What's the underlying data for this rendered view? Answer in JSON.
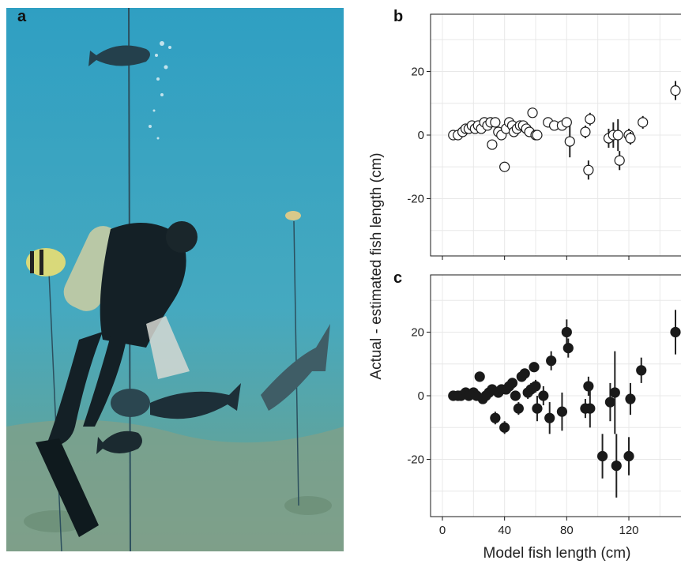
{
  "panels": {
    "a": "a",
    "b": "b",
    "c": "c"
  },
  "colors": {
    "water_top": "#3aa6c6",
    "water_bottom": "#4f9a8c",
    "seabed": "#7f9f86",
    "open_marker": "#ffffff",
    "filled_marker": "#1a1a1a"
  },
  "chart_data": [
    {
      "panel": "b",
      "type": "scatter",
      "marker": "open-circle",
      "xlabel": "Model fish length (cm)",
      "ylabel": "Actual - estimated fish length (cm)",
      "xlim": [
        0,
        150
      ],
      "ylim": [
        -38,
        38
      ],
      "x_ticks": [
        0,
        40,
        80,
        120
      ],
      "y_ticks": [
        -20,
        0,
        20
      ],
      "grid": true,
      "points": [
        {
          "x": 7,
          "y": 0,
          "err": 0
        },
        {
          "x": 10,
          "y": 0,
          "err": 0
        },
        {
          "x": 13,
          "y": 1,
          "err": 0
        },
        {
          "x": 15,
          "y": 2,
          "err": 0
        },
        {
          "x": 17,
          "y": 2,
          "err": 0
        },
        {
          "x": 19,
          "y": 3,
          "err": 0
        },
        {
          "x": 21,
          "y": 2,
          "err": 0
        },
        {
          "x": 23,
          "y": 3,
          "err": 0
        },
        {
          "x": 25,
          "y": 2,
          "err": 0
        },
        {
          "x": 27,
          "y": 4,
          "err": 0
        },
        {
          "x": 29,
          "y": 3,
          "err": 0
        },
        {
          "x": 31,
          "y": 4,
          "err": 0
        },
        {
          "x": 32,
          "y": -3,
          "err": 0
        },
        {
          "x": 34,
          "y": 4,
          "err": 0
        },
        {
          "x": 36,
          "y": 1,
          "err": 0
        },
        {
          "x": 38,
          "y": 0,
          "err": 0
        },
        {
          "x": 40,
          "y": -10,
          "err": 0
        },
        {
          "x": 41,
          "y": 2,
          "err": 0
        },
        {
          "x": 43,
          "y": 4,
          "err": 0
        },
        {
          "x": 45,
          "y": 3,
          "err": 0
        },
        {
          "x": 46,
          "y": 1,
          "err": 0
        },
        {
          "x": 48,
          "y": 2,
          "err": 0
        },
        {
          "x": 50,
          "y": 3,
          "err": 0
        },
        {
          "x": 52,
          "y": 3,
          "err": 0
        },
        {
          "x": 54,
          "y": 2,
          "err": 0
        },
        {
          "x": 56,
          "y": 1,
          "err": 0
        },
        {
          "x": 58,
          "y": 7,
          "err": 1
        },
        {
          "x": 60,
          "y": 0,
          "err": 0
        },
        {
          "x": 61,
          "y": 0,
          "err": 0
        },
        {
          "x": 68,
          "y": 4,
          "err": 1
        },
        {
          "x": 72,
          "y": 3,
          "err": 1
        },
        {
          "x": 77,
          "y": 3,
          "err": 1
        },
        {
          "x": 80,
          "y": 4,
          "err": 1
        },
        {
          "x": 82,
          "y": -2,
          "err": 5
        },
        {
          "x": 92,
          "y": 1,
          "err": 2
        },
        {
          "x": 95,
          "y": 5,
          "err": 2
        },
        {
          "x": 94,
          "y": -11,
          "err": 3
        },
        {
          "x": 107,
          "y": -1,
          "err": 3
        },
        {
          "x": 110,
          "y": 0,
          "err": 4
        },
        {
          "x": 113,
          "y": 0,
          "err": 5
        },
        {
          "x": 114,
          "y": -8,
          "err": 3
        },
        {
          "x": 120,
          "y": 0,
          "err": 2
        },
        {
          "x": 121,
          "y": -1,
          "err": 2
        },
        {
          "x": 129,
          "y": 4,
          "err": 2
        },
        {
          "x": 150,
          "y": 14,
          "err": 3
        }
      ]
    },
    {
      "panel": "c",
      "type": "scatter",
      "marker": "filled-circle",
      "xlabel": "Model fish length (cm)",
      "ylabel": "Actual - estimated fish length (cm)",
      "xlim": [
        0,
        150
      ],
      "ylim": [
        -38,
        38
      ],
      "x_ticks": [
        0,
        40,
        80,
        120
      ],
      "y_ticks": [
        -20,
        0,
        20
      ],
      "grid": true,
      "points": [
        {
          "x": 7,
          "y": 0,
          "err": 0
        },
        {
          "x": 10,
          "y": 0,
          "err": 0
        },
        {
          "x": 12,
          "y": 0,
          "err": 0
        },
        {
          "x": 15,
          "y": 1,
          "err": 0
        },
        {
          "x": 17,
          "y": 0,
          "err": 0
        },
        {
          "x": 20,
          "y": 1,
          "err": 0
        },
        {
          "x": 22,
          "y": 0,
          "err": 0
        },
        {
          "x": 24,
          "y": 6,
          "err": 1
        },
        {
          "x": 26,
          "y": -1,
          "err": 0
        },
        {
          "x": 28,
          "y": 0,
          "err": 0
        },
        {
          "x": 30,
          "y": 1,
          "err": 0
        },
        {
          "x": 32,
          "y": 2,
          "err": 0
        },
        {
          "x": 34,
          "y": -7,
          "err": 2
        },
        {
          "x": 36,
          "y": 1,
          "err": 1
        },
        {
          "x": 38,
          "y": 2,
          "err": 1
        },
        {
          "x": 40,
          "y": -10,
          "err": 2
        },
        {
          "x": 41,
          "y": 2,
          "err": 1
        },
        {
          "x": 43,
          "y": 3,
          "err": 1
        },
        {
          "x": 45,
          "y": 4,
          "err": 1
        },
        {
          "x": 47,
          "y": 0,
          "err": 1
        },
        {
          "x": 49,
          "y": -4,
          "err": 2
        },
        {
          "x": 51,
          "y": 6,
          "err": 1
        },
        {
          "x": 53,
          "y": 7,
          "err": 1
        },
        {
          "x": 55,
          "y": 1,
          "err": 2
        },
        {
          "x": 57,
          "y": 2,
          "err": 2
        },
        {
          "x": 59,
          "y": 9,
          "err": 1
        },
        {
          "x": 60,
          "y": 3,
          "err": 2
        },
        {
          "x": 61,
          "y": -4,
          "err": 4
        },
        {
          "x": 65,
          "y": 0,
          "err": 3
        },
        {
          "x": 69,
          "y": -7,
          "err": 5
        },
        {
          "x": 70,
          "y": 11,
          "err": 3
        },
        {
          "x": 77,
          "y": -5,
          "err": 6
        },
        {
          "x": 80,
          "y": 20,
          "err": 4
        },
        {
          "x": 81,
          "y": 15,
          "err": 3
        },
        {
          "x": 92,
          "y": -4,
          "err": 3
        },
        {
          "x": 94,
          "y": 3,
          "err": 3
        },
        {
          "x": 95,
          "y": -4,
          "err": 6
        },
        {
          "x": 103,
          "y": -19,
          "err": 7
        },
        {
          "x": 108,
          "y": -2,
          "err": 6
        },
        {
          "x": 111,
          "y": 1,
          "err": 13
        },
        {
          "x": 112,
          "y": -22,
          "err": 10
        },
        {
          "x": 120,
          "y": -19,
          "err": 6
        },
        {
          "x": 121,
          "y": -1,
          "err": 5
        },
        {
          "x": 128,
          "y": 8,
          "err": 4
        },
        {
          "x": 150,
          "y": 20,
          "err": 7
        }
      ]
    }
  ]
}
